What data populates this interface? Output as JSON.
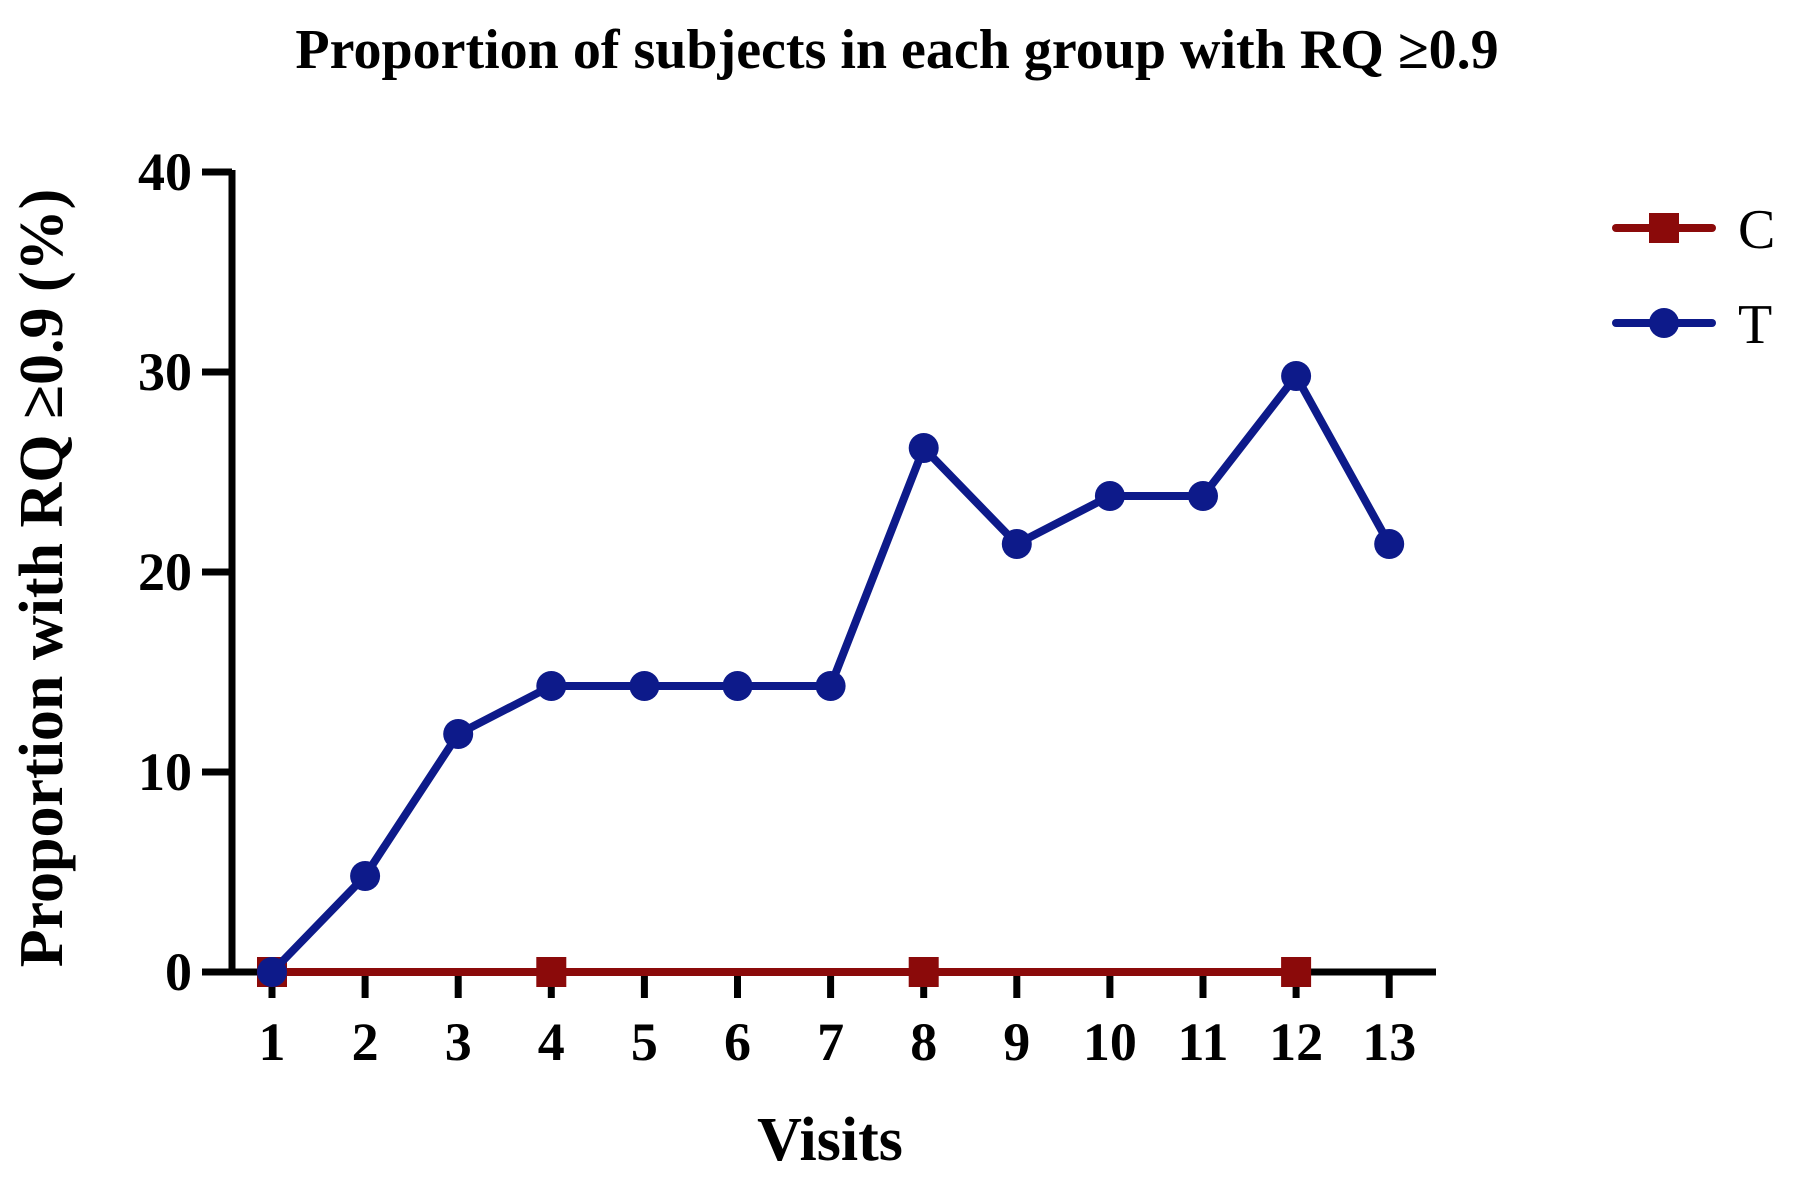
{
  "chart_data": {
    "type": "line",
    "title": "Proportion of subjects in each group with RQ ≥0.9",
    "xlabel": "Visits",
    "ylabel": "Proportion with RQ ≥0.9 (%)",
    "x": [
      1,
      2,
      3,
      4,
      5,
      6,
      7,
      8,
      9,
      10,
      11,
      12,
      13
    ],
    "xticks": [
      "1",
      "2",
      "3",
      "4",
      "5",
      "6",
      "7",
      "8",
      "9",
      "10",
      "11",
      "12",
      "13"
    ],
    "ylim": [
      0,
      40
    ],
    "yticks": [
      "0",
      "10",
      "20",
      "30",
      "40"
    ],
    "grid": false,
    "legend_position": "top-right",
    "series": [
      {
        "name": "C",
        "marker": "square",
        "color": "#8b0a0a",
        "x": [
          1,
          2,
          3,
          4,
          5,
          6,
          7,
          8,
          9,
          10,
          11,
          12
        ],
        "values": [
          0,
          0,
          0,
          0,
          0,
          0,
          0,
          0,
          0,
          0,
          0,
          0
        ],
        "marker_at": [
          1,
          4,
          8,
          12
        ]
      },
      {
        "name": "T",
        "marker": "circle",
        "color": "#0d1a8a",
        "x": [
          1,
          2,
          3,
          4,
          5,
          6,
          7,
          8,
          9,
          10,
          11,
          12,
          13
        ],
        "values": [
          0,
          4.8,
          11.9,
          14.3,
          14.3,
          14.3,
          14.3,
          26.2,
          21.4,
          23.8,
          23.8,
          29.8,
          21.4
        ]
      }
    ]
  }
}
